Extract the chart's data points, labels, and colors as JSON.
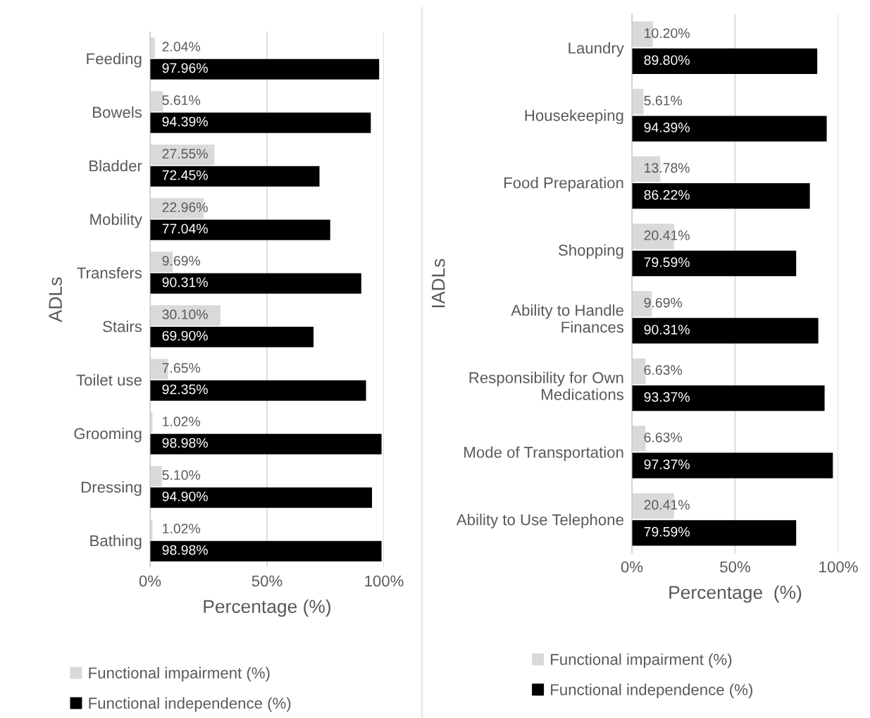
{
  "chart_data": [
    {
      "type": "bar",
      "orientation": "horizontal",
      "ylabel": "ADLs",
      "xlabel": "Percentage (%)",
      "categories": [
        "Feeding",
        "Bowels",
        "Bladder",
        "Mobility",
        "Transfers",
        "Stairs",
        "Toilet use",
        "Grooming",
        "Dressing",
        "Bathing"
      ],
      "series": [
        {
          "name": "Functional impairment (%)",
          "color": "#d9d9d9",
          "values": [
            2.04,
            5.61,
            27.55,
            22.96,
            9.69,
            30.1,
            7.65,
            1.02,
            5.1,
            1.02
          ],
          "value_labels": [
            "2.04%",
            "5.61%",
            "27.55%",
            "22.96%",
            "9.69%",
            "30.10%",
            "7.65%",
            "1.02%",
            "5.10%",
            "1.02%"
          ]
        },
        {
          "name": "Functional independence (%)",
          "color": "#000000",
          "values": [
            97.96,
            94.39,
            72.45,
            77.04,
            90.31,
            69.9,
            92.35,
            98.98,
            94.9,
            98.98
          ],
          "value_labels": [
            "97.96%",
            "94.39%",
            "72.45%",
            "77.04%",
            "90.31%",
            "69.90%",
            "92.35%",
            "98.98%",
            "94.90%",
            "98.98%"
          ]
        }
      ],
      "xlim": [
        0,
        100
      ],
      "xticks": [
        {
          "value": 0,
          "label": "0%"
        },
        {
          "value": 50,
          "label": "50%"
        },
        {
          "value": 100,
          "label": "100%"
        }
      ],
      "grid": "x",
      "legend": "bottom"
    },
    {
      "type": "bar",
      "orientation": "horizontal",
      "ylabel": "IADLs",
      "xlabel": "Percentage  (%)",
      "categories": [
        "Laundry",
        "Housekeeping",
        "Food Preparation",
        "Shopping",
        "Ability to Handle\nFinances",
        "Responsibility for Own\nMedications",
        "Mode of Transportation",
        "Ability to Use Telephone"
      ],
      "series": [
        {
          "name": "Functional impairment (%)",
          "color": "#d9d9d9",
          "values": [
            10.2,
            5.61,
            13.78,
            20.41,
            9.69,
            6.63,
            6.63,
            20.41
          ],
          "value_labels": [
            "10.20%",
            "5.61%",
            "13.78%",
            "20.41%",
            "9.69%",
            "6.63%",
            "6.63%",
            "20.41%"
          ]
        },
        {
          "name": "Functional independence (%)",
          "color": "#000000",
          "values": [
            89.8,
            94.39,
            86.22,
            79.59,
            90.31,
            93.37,
            97.37,
            79.59
          ],
          "value_labels": [
            "89.80%",
            "94.39%",
            "86.22%",
            "79.59%",
            "90.31%",
            "93.37%",
            "97.37%",
            "79.59%"
          ]
        }
      ],
      "xlim": [
        0,
        100
      ],
      "xticks": [
        {
          "value": 0,
          "label": "0%"
        },
        {
          "value": 50,
          "label": "50%"
        },
        {
          "value": 100,
          "label": "100%"
        }
      ],
      "grid": "x",
      "legend": "bottom"
    }
  ]
}
